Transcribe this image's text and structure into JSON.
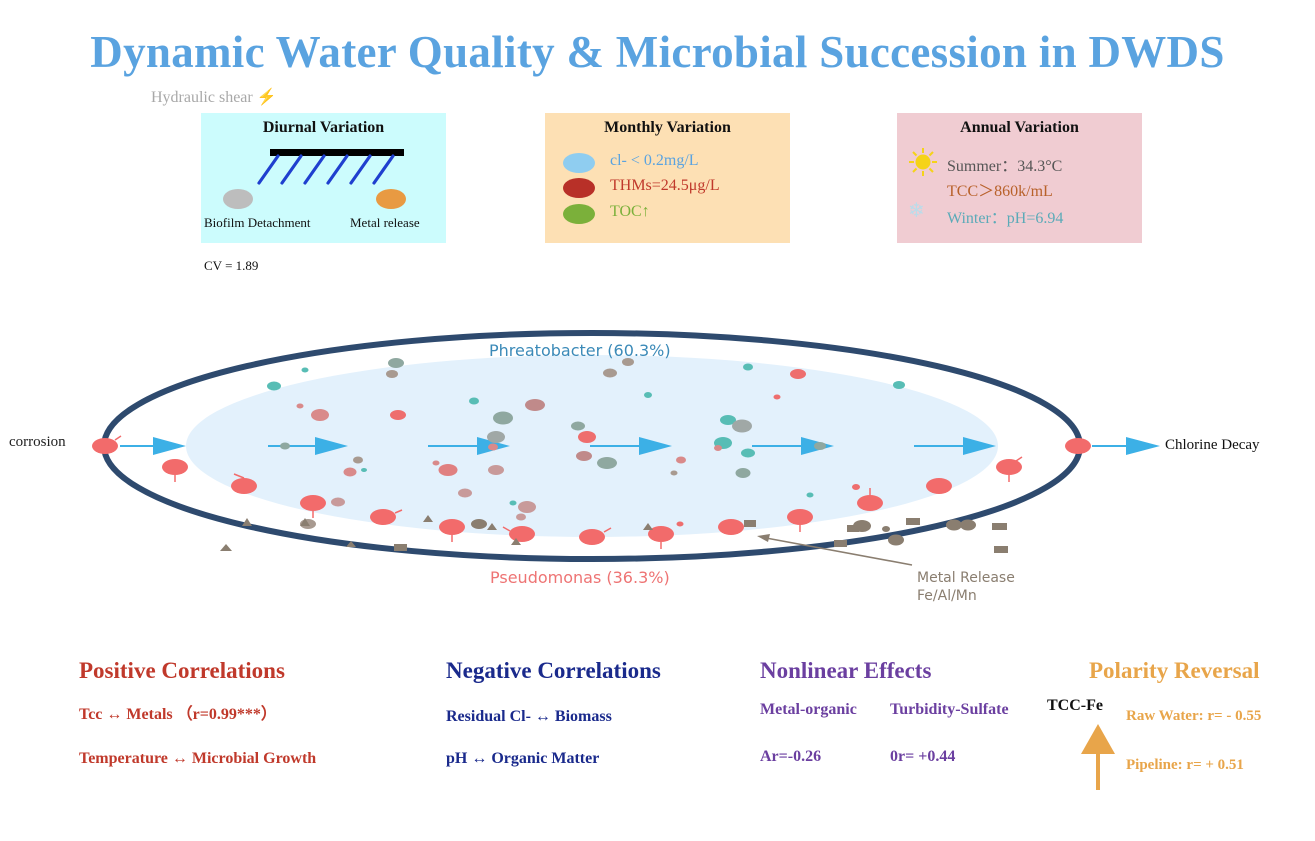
{
  "title": "Dynamic Water Quality & Microbial Succession in DWDS",
  "hydraulic_label": "Hydraulic shear",
  "hydraulic_icon": "lightning-bolt-icon",
  "diurnal": {
    "title": "Diurnal Variation",
    "biofilm_label": "Biofilm Detachment",
    "metal_label": "Metal release",
    "cv": "CV = 1.89"
  },
  "monthly": {
    "title": "Monthly  Variation",
    "items": [
      {
        "text": "cl- < 0.2mg/L",
        "color": "#8fcdf0",
        "text_color": "#5aa3e0"
      },
      {
        "text": "THMs=24.5μg/L",
        "color": "#b83028",
        "text_color": "#c0392b"
      },
      {
        "text": "TOC↑",
        "color": "#7bb03a",
        "text_color": "#7bb03a"
      }
    ]
  },
  "annual": {
    "title": "Annual Variation",
    "summer": "Summer：34.3°C",
    "tcc": "TCC＞860k/mL",
    "winter": "Winter：pH=6.94",
    "summer_icon": "sun-icon",
    "winter_icon": "snowflake-icon"
  },
  "pipe": {
    "left_label": "corrosion",
    "right_label": "Chlorine Decay",
    "top_label": "Phreatobacter (60.3%)",
    "bottom_label": "Pseudomonas (36.3%)",
    "metal_release_line1": "Metal Release",
    "metal_release_line2": "Fe/Al/Mn"
  },
  "positive": {
    "title": "Positive Correlations",
    "item1": "Tcc ↔   Metals （r=0.99***）",
    "item2": "Temperature ↔  Microbial Growth",
    "color": "#c0392b"
  },
  "negative": {
    "title": "Negative Correlations",
    "item1": "Residual Cl- ↔ Biomass",
    "item2": "pH ↔ Organic Matter",
    "color": "#1a2a8c"
  },
  "nonlinear": {
    "title": "Nonlinear Effects",
    "label1": "Metal-organic",
    "label2": "Turbidity-Sulfate",
    "value1": "Ar=-0.26",
    "value2": "0r= +0.44",
    "color": "#6b3fa0"
  },
  "polarity": {
    "title": "Polarity Reversal",
    "tcc_fe": "TCC-Fe",
    "raw": "Raw Water: r= - 0.55",
    "pipeline": "Pipeline: r= + 0.51",
    "color": "#e8a54a"
  }
}
